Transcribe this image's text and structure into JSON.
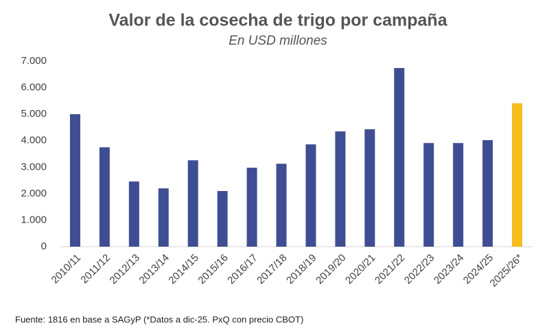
{
  "chart_data": {
    "type": "bar",
    "title": "Valor de la cosecha de trigo por campaña",
    "subtitle": "En USD millones",
    "categories": [
      "2010/11",
      "2011/12",
      "2012/13",
      "2013/14",
      "2014/15",
      "2015/16",
      "2016/17",
      "2017/18",
      "2018/19",
      "2019/20",
      "2020/21",
      "2021/22",
      "2022/23",
      "2023/24",
      "2024/25",
      "2025/26*"
    ],
    "values": [
      5000,
      3750,
      2460,
      2200,
      3260,
      2100,
      2980,
      3130,
      3860,
      4350,
      4430,
      6740,
      3910,
      3910,
      4020,
      5410
    ],
    "colors": [
      "#3f4e93",
      "#3f4e93",
      "#3f4e93",
      "#3f4e93",
      "#3f4e93",
      "#3f4e93",
      "#3f4e93",
      "#3f4e93",
      "#3f4e93",
      "#3f4e93",
      "#3f4e93",
      "#3f4e93",
      "#3f4e93",
      "#3f4e93",
      "#3f4e93",
      "#f7bd1e"
    ],
    "ylim": [
      0,
      7000
    ],
    "yticks": [
      0,
      {
        "value": 1000,
        "label": "1.000"
      },
      {
        "value": 2000,
        "label": "2.000"
      },
      {
        "value": 3000,
        "label": "3.000"
      },
      {
        "value": 4000,
        "label": "4.000"
      },
      {
        "value": 5000,
        "label": "5.000"
      },
      {
        "value": 6000,
        "label": "6.000"
      },
      {
        "value": 7000,
        "label": "7.000"
      }
    ],
    "grid": false,
    "source": "Fuente: 1816 en base a SAGyP (*Datos a dic-25. PxQ con precio CBOT)"
  }
}
